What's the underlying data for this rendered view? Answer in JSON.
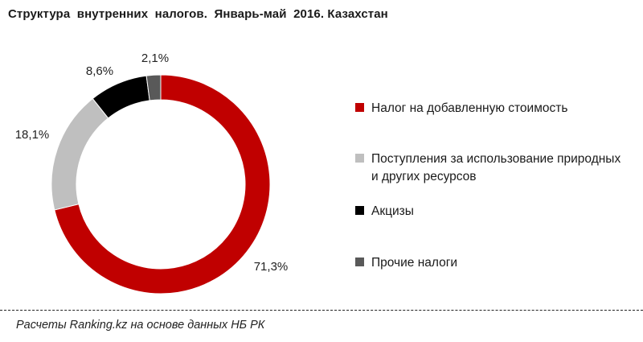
{
  "chart_data": {
    "type": "pie",
    "title": "Структура  внутренних  налогов.  Январь-май  2016. Казахстан",
    "series": [
      {
        "name": "Налог на добавленную стоимость",
        "value": 71.3,
        "label": "71,3%",
        "color": "#c00000"
      },
      {
        "name": "Поступления за использование природных и других ресурсов",
        "value": 18.1,
        "label": "18,1%",
        "color": "#bfbfbf"
      },
      {
        "name": "Акцизы",
        "value": 8.6,
        "label": "8,6%",
        "color": "#000000"
      },
      {
        "name": "Прочие налоги",
        "value": 2.1,
        "label": "2,1%",
        "color": "#595959"
      }
    ],
    "legend_position": "right"
  },
  "footer": {
    "source": "Расчеты Ranking.kz на основе данных НБ РК"
  }
}
